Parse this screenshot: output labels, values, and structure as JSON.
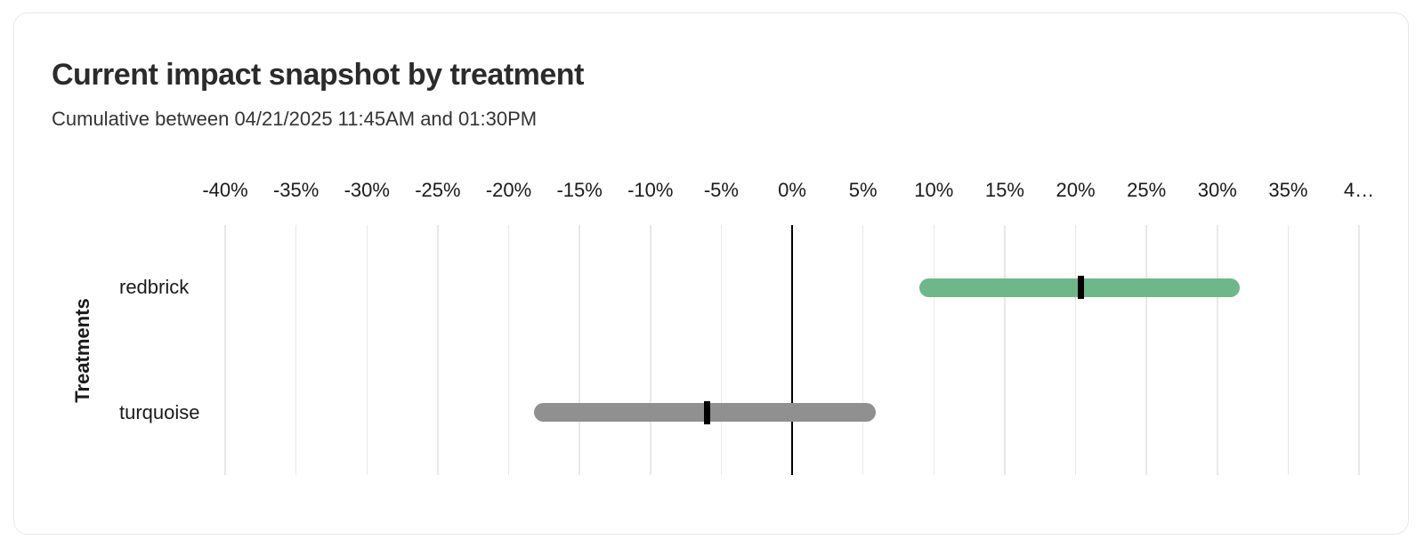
{
  "card": {
    "title": "Current impact snapshot by treatment",
    "subtitle": "Cumulative between 04/21/2025 11:45AM and 01:30PM"
  },
  "colors": {
    "card_border": "#e8e8e8",
    "title_text": "#2b2b2b",
    "subtitle_text": "#333333",
    "axis_text": "#1a1a1a",
    "gridline": "#e8e8e8",
    "zero_line": "#000000",
    "point_estimate_tick": "#000000",
    "redbrick_bar": "#6eb78b",
    "turquoise_bar": "#909090"
  },
  "chart_data": {
    "type": "bar",
    "subtype": "horizontal-interval",
    "title": "Current impact snapshot by treatment",
    "subtitle": "Cumulative between 04/21/2025 11:45AM and 01:30PM",
    "ylabel": "Treatments",
    "xlabel": "",
    "grid": "vertical-on",
    "x_axis": {
      "unit": "%",
      "min": -40,
      "max": 40,
      "tick_step": 5,
      "tick_values": [
        -40,
        -35,
        -30,
        -25,
        -20,
        -15,
        -10,
        -5,
        0,
        5,
        10,
        15,
        20,
        25,
        30,
        35,
        40
      ],
      "tick_labels": [
        "-40%",
        "-35%",
        "-30%",
        "-25%",
        "-20%",
        "-15%",
        "-10%",
        "-5%",
        "0%",
        "5%",
        "10%",
        "15%",
        "20%",
        "25%",
        "30%",
        "35%",
        "4…"
      ]
    },
    "series": [
      {
        "name": "redbrick",
        "low": 9.0,
        "mid": 20.4,
        "high": 31.6,
        "color": "#6eb78b"
      },
      {
        "name": "turquoise",
        "low": -18.2,
        "mid": -6.0,
        "high": 5.9,
        "color": "#909090"
      }
    ]
  }
}
